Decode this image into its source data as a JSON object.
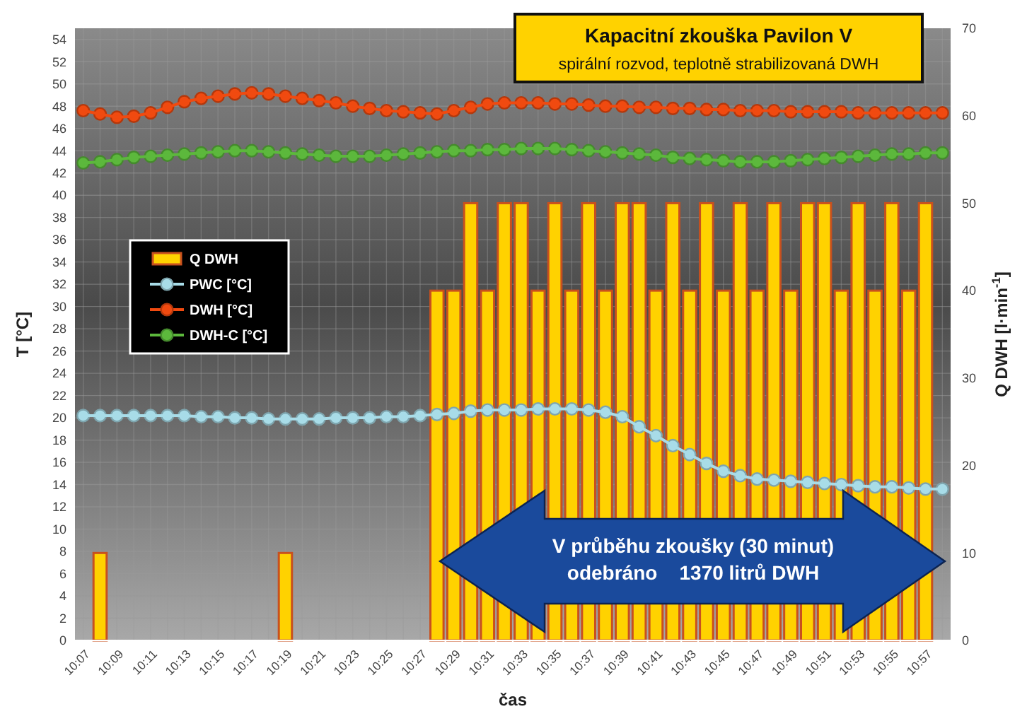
{
  "chart_data": {
    "type": "line",
    "title": "Kapacitní zkouška Pavilon V",
    "subtitle": "spirální rozvod, teplotně strabilizovaná DWH",
    "xlabel": "čas",
    "ylabel": "T [°C]",
    "y2label": "Q DWH [l·min$^{-1}$]",
    "categories": [
      "10:07",
      null,
      "10:09",
      null,
      "10:11",
      null,
      "10:13",
      null,
      "10:15",
      null,
      "10:17",
      null,
      "10:19",
      null,
      "10:21",
      null,
      "10:23",
      null,
      "10:25",
      null,
      "10:27",
      null,
      "10:29",
      null,
      "10:31",
      null,
      "10:33",
      null,
      "10:35",
      null,
      "10:37",
      null,
      "10:39",
      null,
      "10:41",
      null,
      "10:43",
      null,
      "10:45",
      null,
      "10:47",
      null,
      "10:49",
      null,
      "10:51",
      null,
      "10:53",
      null,
      "10:55",
      null,
      "10:57",
      null
    ],
    "series": [
      {
        "name": "Q DWH",
        "type": "bar",
        "axis": "y2",
        "color": "#ffd200",
        "values": [
          null,
          10,
          null,
          null,
          null,
          null,
          null,
          null,
          null,
          null,
          null,
          null,
          10,
          null,
          null,
          null,
          null,
          null,
          null,
          null,
          null,
          40,
          40,
          50,
          40,
          50,
          50,
          40,
          50,
          40,
          50,
          40,
          50,
          50,
          40,
          50,
          40,
          50,
          40,
          50,
          40,
          50,
          40,
          50,
          50,
          40,
          50,
          40,
          50,
          40,
          50,
          null
        ]
      },
      {
        "name": "PWC [°C]",
        "color": "#a8dce8",
        "values": [
          20.2,
          20.2,
          20.2,
          20.2,
          20.2,
          20.2,
          20.2,
          20.1,
          20.1,
          20.0,
          20.0,
          19.9,
          19.9,
          19.9,
          19.9,
          20.0,
          20.0,
          20.0,
          20.1,
          20.1,
          20.2,
          20.3,
          20.4,
          20.6,
          20.7,
          20.7,
          20.7,
          20.8,
          20.8,
          20.8,
          20.7,
          20.5,
          20.1,
          19.2,
          18.4,
          17.5,
          16.7,
          15.9,
          15.2,
          14.8,
          14.5,
          14.4,
          14.3,
          14.2,
          14.1,
          14.0,
          13.9,
          13.8,
          13.8,
          13.7,
          13.6,
          13.6
        ]
      },
      {
        "name": "DWH [°C]",
        "color": "#f04a10",
        "values": [
          47.6,
          47.3,
          47.0,
          47.1,
          47.4,
          47.9,
          48.4,
          48.7,
          48.9,
          49.1,
          49.2,
          49.1,
          48.9,
          48.7,
          48.5,
          48.3,
          48.0,
          47.8,
          47.6,
          47.5,
          47.4,
          47.3,
          47.6,
          47.9,
          48.2,
          48.3,
          48.3,
          48.3,
          48.2,
          48.2,
          48.1,
          48.0,
          48.0,
          47.9,
          47.9,
          47.8,
          47.8,
          47.7,
          47.7,
          47.6,
          47.6,
          47.6,
          47.5,
          47.5,
          47.5,
          47.5,
          47.4,
          47.4,
          47.4,
          47.4,
          47.4,
          47.4
        ]
      },
      {
        "name": "DWH-C [°C]",
        "color": "#5cb83c",
        "values": [
          42.9,
          43.0,
          43.2,
          43.4,
          43.5,
          43.6,
          43.7,
          43.8,
          43.9,
          44.0,
          44.0,
          43.9,
          43.8,
          43.7,
          43.6,
          43.5,
          43.5,
          43.5,
          43.6,
          43.7,
          43.8,
          43.9,
          44.0,
          44.0,
          44.1,
          44.1,
          44.2,
          44.2,
          44.2,
          44.1,
          44.0,
          43.9,
          43.8,
          43.7,
          43.6,
          43.4,
          43.3,
          43.2,
          43.1,
          43.0,
          43.0,
          43.0,
          43.1,
          43.2,
          43.3,
          43.4,
          43.5,
          43.6,
          43.7,
          43.7,
          43.8,
          43.8
        ]
      }
    ],
    "ylim": [
      0,
      55
    ],
    "yticks": [
      0,
      2,
      4,
      6,
      8,
      10,
      12,
      14,
      16,
      18,
      20,
      22,
      24,
      26,
      28,
      30,
      32,
      34,
      36,
      38,
      40,
      42,
      44,
      46,
      48,
      50,
      52,
      54
    ],
    "y2lim": [
      0,
      70
    ],
    "y2ticks": [
      0,
      10,
      20,
      30,
      40,
      50,
      60,
      70
    ],
    "annotations": [
      "V průběhu zkoušky (30 minut)",
      "odebráno    1370 litrů DWH"
    ],
    "grid": true,
    "legend": "left",
    "marker": "circle"
  }
}
